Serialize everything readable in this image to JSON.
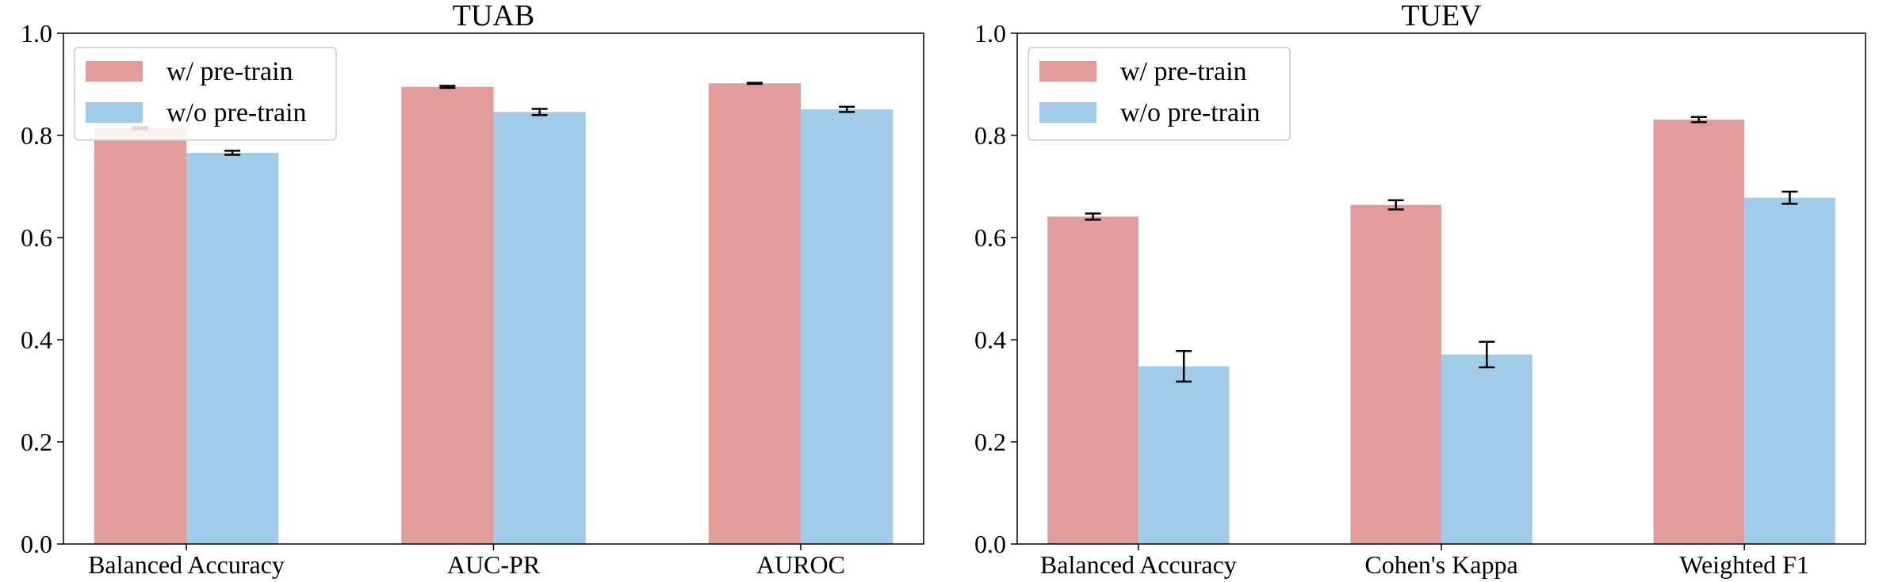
{
  "chart_data": [
    {
      "type": "bar",
      "title": "TUAB",
      "xlabel": "",
      "ylabel": "",
      "categories": [
        "Balanced Accuracy",
        "AUC-PR",
        "AUROC"
      ],
      "series": [
        {
          "name": "w/ pre-train",
          "color": "#E29D9A",
          "values": [
            0.814,
            0.895,
            0.902
          ],
          "errors": [
            0.002,
            0.002,
            0.001
          ]
        },
        {
          "name": "w/o pre-train",
          "color": "#A0CBE9",
          "values": [
            0.766,
            0.846,
            0.851
          ],
          "errors": [
            0.004,
            0.006,
            0.005
          ]
        }
      ],
      "ylim": [
        0,
        1.0
      ],
      "yticks": [
        "0.0",
        "0.2",
        "0.4",
        "0.6",
        "0.8",
        "1.0"
      ],
      "grid": false,
      "legend_position": "top-left"
    },
    {
      "type": "bar",
      "title": "TUEV",
      "xlabel": "",
      "ylabel": "",
      "categories": [
        "Balanced Accuracy",
        "Cohen's Kappa",
        "Weighted F1"
      ],
      "series": [
        {
          "name": "w/ pre-train",
          "color": "#E29D9A",
          "values": [
            0.641,
            0.664,
            0.831
          ],
          "errors": [
            0.006,
            0.009,
            0.005
          ]
        },
        {
          "name": "w/o pre-train",
          "color": "#A0CBE9",
          "values": [
            0.348,
            0.371,
            0.678
          ],
          "errors": [
            0.03,
            0.025,
            0.012
          ]
        }
      ],
      "ylim": [
        0,
        1.0
      ],
      "yticks": [
        "0.0",
        "0.2",
        "0.4",
        "0.6",
        "0.8",
        "1.0"
      ],
      "grid": false,
      "legend_position": "top-left"
    }
  ]
}
